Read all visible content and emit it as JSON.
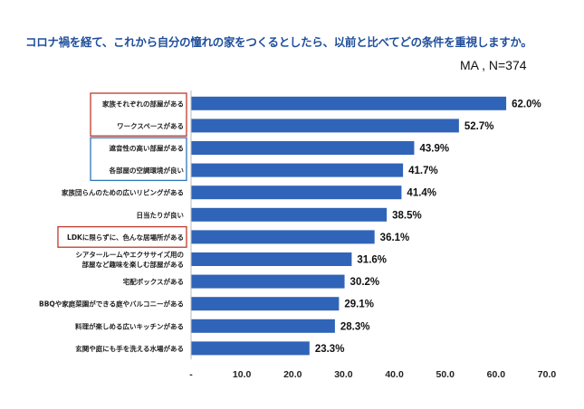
{
  "chart_data": {
    "type": "bar",
    "orientation": "horizontal",
    "title": "コロナ禍を経て、これから自分の憧れの家をつくるとしたら、以前と比べてどの条件を重視しますか。",
    "subtitle": "MA , N=374",
    "categories": [
      "家族それぞれの部屋がある",
      "ワークスペースがある",
      "遮音性の高い部屋がある",
      "各部屋の空調環境が良い",
      "家族団らんのための広いリビングがある",
      "日当たりが良い",
      "LDKに限らずに、色んな居場所がある",
      "シアタールームやエクササイズ用の\n部屋など趣味を楽しむ部屋がある",
      "宅配ボックスがある",
      "BBQや家庭菜園ができる庭やバルコニーがある",
      "料理が楽しめる広いキッチンがある",
      "玄関や庭にも手を洗える水場がある"
    ],
    "values": [
      62.0,
      52.7,
      43.9,
      41.7,
      41.4,
      38.5,
      36.1,
      31.6,
      30.2,
      29.1,
      28.3,
      23.3
    ],
    "value_labels": [
      "62.0%",
      "52.7%",
      "43.9%",
      "41.7%",
      "41.4%",
      "38.5%",
      "36.1%",
      "31.6%",
      "30.2%",
      "29.1%",
      "28.3%",
      "23.3%"
    ],
    "xlim": [
      0,
      70
    ],
    "tick_labels": [
      "-",
      "10.0",
      "20.0",
      "30.0",
      "40.0",
      "50.0",
      "60.0",
      "70.0"
    ],
    "highlight_groups": [
      {
        "indices": [
          0,
          1
        ],
        "color": "#c0392b"
      },
      {
        "indices": [
          2,
          3
        ],
        "color": "#2e75b6"
      },
      {
        "indices": [
          6
        ],
        "color": "#c0392b"
      }
    ],
    "bar_color": "#2f64b8",
    "grid": false
  }
}
